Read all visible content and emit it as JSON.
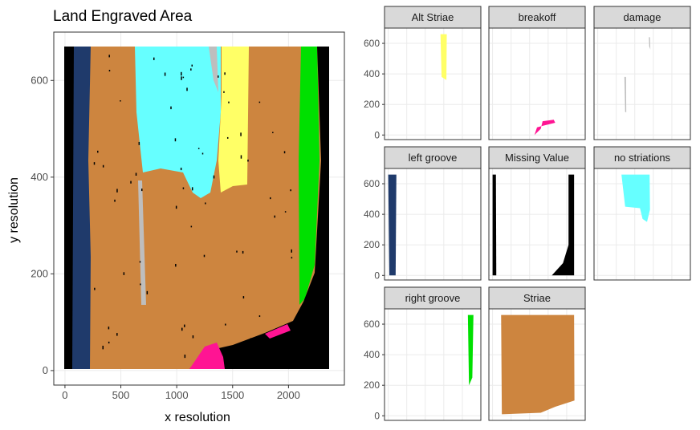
{
  "chart_data": [
    {
      "type": "raster",
      "title": "Land Engraved Area",
      "xlabel": "x resolution",
      "ylabel": "y resolution",
      "xlim": [
        -100,
        2500
      ],
      "ylim": [
        -30,
        700
      ],
      "x_ticks": [
        0,
        500,
        1000,
        1500,
        2000
      ],
      "y_ticks": [
        0,
        200,
        400,
        600
      ],
      "grid": true,
      "legend": "none"
    },
    {
      "type": "raster",
      "facets": true,
      "panels": [
        {
          "label": "Alt Striae"
        },
        {
          "label": "breakoff"
        },
        {
          "label": "damage"
        },
        {
          "label": "left groove"
        },
        {
          "label": "Missing Value"
        },
        {
          "label": "no striations"
        },
        {
          "label": "right groove"
        },
        {
          "label": "Striae"
        }
      ],
      "y_ticks": [
        0,
        200,
        400,
        600
      ],
      "ylim": [
        -30,
        700
      ],
      "xlim": [
        -100,
        2500
      ],
      "grid": true
    }
  ],
  "colors": {
    "Alt Striae": "#ffff66",
    "breakoff": "#ff1493",
    "damage": "#bebebe",
    "left groove": "#1f3a6b",
    "Missing Value": "#000000",
    "no striations": "#66ffff",
    "right groove": "#00e000",
    "Striae": "#cd853f"
  }
}
